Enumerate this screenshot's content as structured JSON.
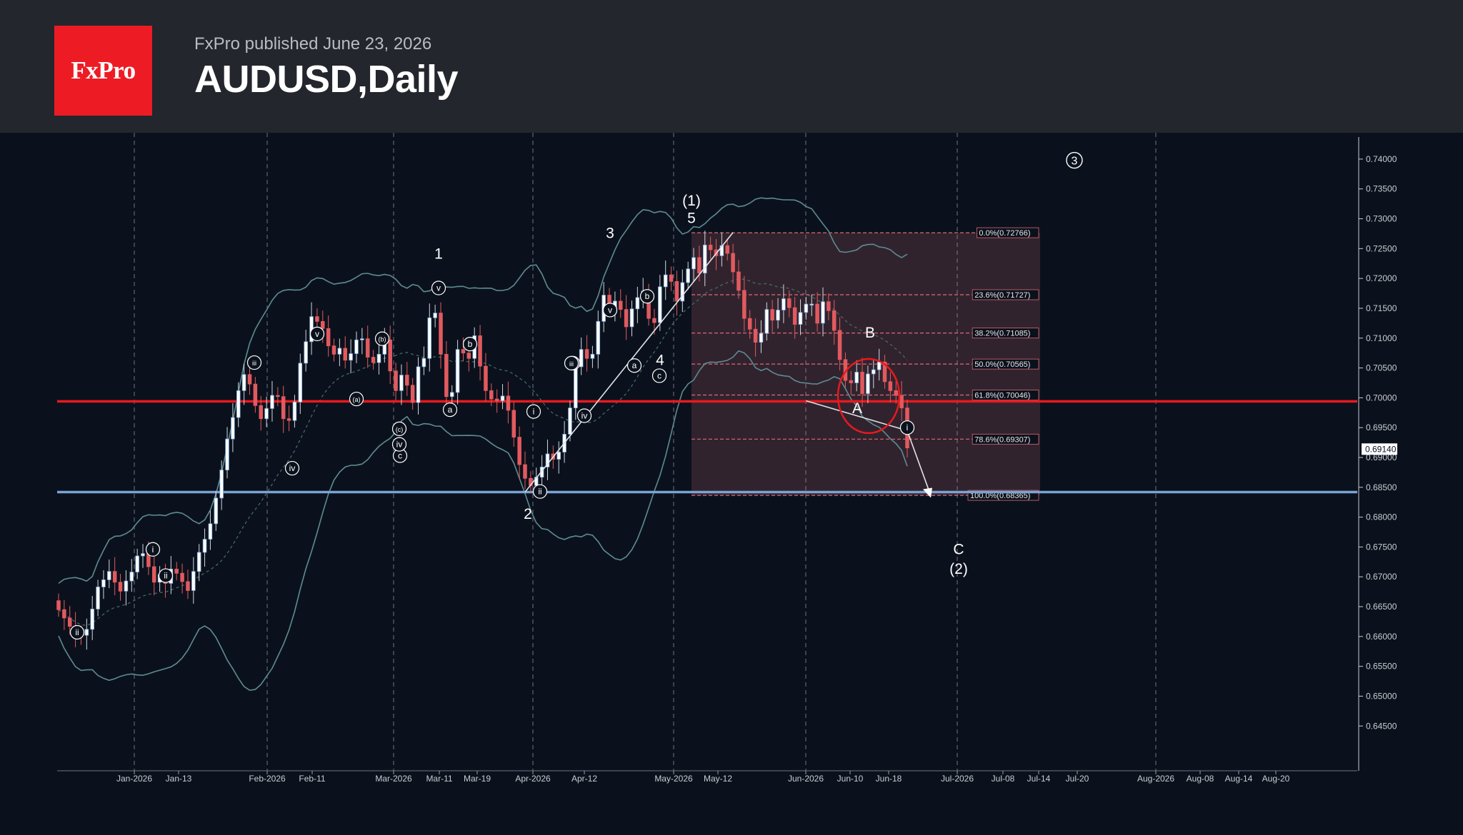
{
  "header": {
    "logo_text": "FxPro",
    "published": "FxPro published June 23, 2026",
    "title": "AUDUSD,Daily",
    "logo_color": "#ed1c24",
    "background": "#23262d"
  },
  "chart_data": {
    "type": "candlestick",
    "symbol": "AUDUSD",
    "timeframe": "Daily",
    "ylim": [
      0.6375,
      0.7425
    ],
    "y_ticks": [
      "0.74000",
      "0.73500",
      "0.73000",
      "0.72500",
      "0.72000",
      "0.71500",
      "0.71000",
      "0.70500",
      "0.70000",
      "0.69500",
      "0.69000",
      "0.68500",
      "0.68000",
      "0.67500",
      "0.67000",
      "0.66500",
      "0.66000",
      "0.65500",
      "0.65000",
      "0.64500"
    ],
    "current_price": "0.69140",
    "x_ticks": [
      "Jan-2026",
      "Jan-13",
      "Feb-2026",
      "Feb-11",
      "Mar-2026",
      "Mar-11",
      "Mar-19",
      "Apr-2026",
      "Apr-12",
      "May-2026",
      "May-12",
      "Jun-2026",
      "Jun-10",
      "Jun-18",
      "Jul-2026",
      "Jul-08",
      "Jul-14",
      "Jul-20",
      "Aug-2026",
      "Aug-08",
      "Aug-14",
      "Aug-20"
    ],
    "horizontal_lines": [
      {
        "price": 0.6994,
        "color": "#e8191e"
      },
      {
        "price": 0.6842,
        "color": "#7aa3d6"
      }
    ],
    "fibonacci": {
      "levels": [
        {
          "label": "0.0%(0.72766)",
          "price": 0.72766
        },
        {
          "label": "23.6%(0.71727)",
          "price": 0.71727
        },
        {
          "label": "38.2%(0.71085)",
          "price": 0.71085
        },
        {
          "label": "50.0%(0.70565)",
          "price": 0.70565
        },
        {
          "label": "61.8%(0.70046)",
          "price": 0.70046
        },
        {
          "label": "78.6%(0.69307)",
          "price": 0.69307
        },
        {
          "label": "100.0%(0.68365)",
          "price": 0.68365
        }
      ],
      "from_date": "May-2026",
      "to_date": "Jul-14"
    },
    "candles_close": [
      0.6645,
      0.6631,
      0.6617,
      0.6604,
      0.6602,
      0.6612,
      0.6646,
      0.6683,
      0.6695,
      0.6709,
      0.6691,
      0.6676,
      0.6693,
      0.6708,
      0.6735,
      0.6739,
      0.6717,
      0.6691,
      0.6704,
      0.6689,
      0.6713,
      0.6706,
      0.6692,
      0.6677,
      0.6709,
      0.6741,
      0.6763,
      0.6789,
      0.6832,
      0.6879,
      0.6931,
      0.6967,
      0.7012,
      0.7039,
      0.7023,
      0.6987,
      0.6965,
      0.6982,
      0.7004,
      0.7002,
      0.6965,
      0.6962,
      0.6993,
      0.7058,
      0.7094,
      0.7136,
      0.7128,
      0.7116,
      0.7087,
      0.7073,
      0.7083,
      0.7063,
      0.7074,
      0.7097,
      0.7099,
      0.7068,
      0.7059,
      0.7073,
      0.7097,
      0.7045,
      0.7012,
      0.7038,
      0.7021,
      0.6992,
      0.7052,
      0.7066,
      0.7134,
      0.7142,
      0.7073,
      0.7002,
      0.7009,
      0.7081,
      0.7075,
      0.7066,
      0.7104,
      0.7053,
      0.7012,
      0.6998,
      0.6995,
      0.7003,
      0.6979,
      0.6934,
      0.6888,
      0.6865,
      0.6853,
      0.6867,
      0.6884,
      0.6906,
      0.6897,
      0.6909,
      0.6939,
      0.6983,
      0.7052,
      0.7081,
      0.7066,
      0.7073,
      0.7128,
      0.7172,
      0.7148,
      0.7162,
      0.7148,
      0.7119,
      0.7149,
      0.7168,
      0.7179,
      0.7133,
      0.7126,
      0.7186,
      0.7206,
      0.7195,
      0.7162,
      0.7193,
      0.7216,
      0.7235,
      0.7209,
      0.7256,
      0.7248,
      0.7238,
      0.7255,
      0.7242,
      0.7211,
      0.718,
      0.7133,
      0.7115,
      0.7093,
      0.7108,
      0.7148,
      0.713,
      0.7147,
      0.7166,
      0.7151,
      0.7123,
      0.7143,
      0.7157,
      0.7157,
      0.7125,
      0.7161,
      0.7146,
      0.7113,
      0.7064,
      0.7029,
      0.7025,
      0.7043,
      0.7007,
      0.704,
      0.7047,
      0.706,
      0.7027,
      0.7012,
      0.7004,
      0.6983,
      0.6916
    ],
    "bollinger": {
      "upper": "outer band",
      "middle": "dashed basis",
      "lower": "outer band"
    },
    "wave_labels": [
      {
        "text": "(1)",
        "price": 0.7322
      },
      {
        "text": "5",
        "price": 0.7293
      },
      {
        "text": "3",
        "price": 0.7268
      },
      {
        "text": "1",
        "price": 0.7233
      },
      {
        "text": "4",
        "price": 0.7055
      },
      {
        "text": "2",
        "price": 0.6797
      },
      {
        "text": "B",
        "price": 0.7101
      },
      {
        "text": "A",
        "price": 0.6974
      },
      {
        "text": "C",
        "price": 0.6738
      },
      {
        "text": "(2)",
        "price": 0.6705
      }
    ],
    "circled_labels": [
      "ii",
      "i",
      "ii",
      "iii",
      "iv",
      "v",
      "(a)",
      "(b)",
      "(c)",
      "a",
      "b",
      "c",
      "iii",
      "v",
      "i",
      "ii",
      "iii",
      "iv",
      "a",
      "b",
      "c",
      "v",
      "iv",
      "i"
    ],
    "circled_big_label": "3"
  }
}
